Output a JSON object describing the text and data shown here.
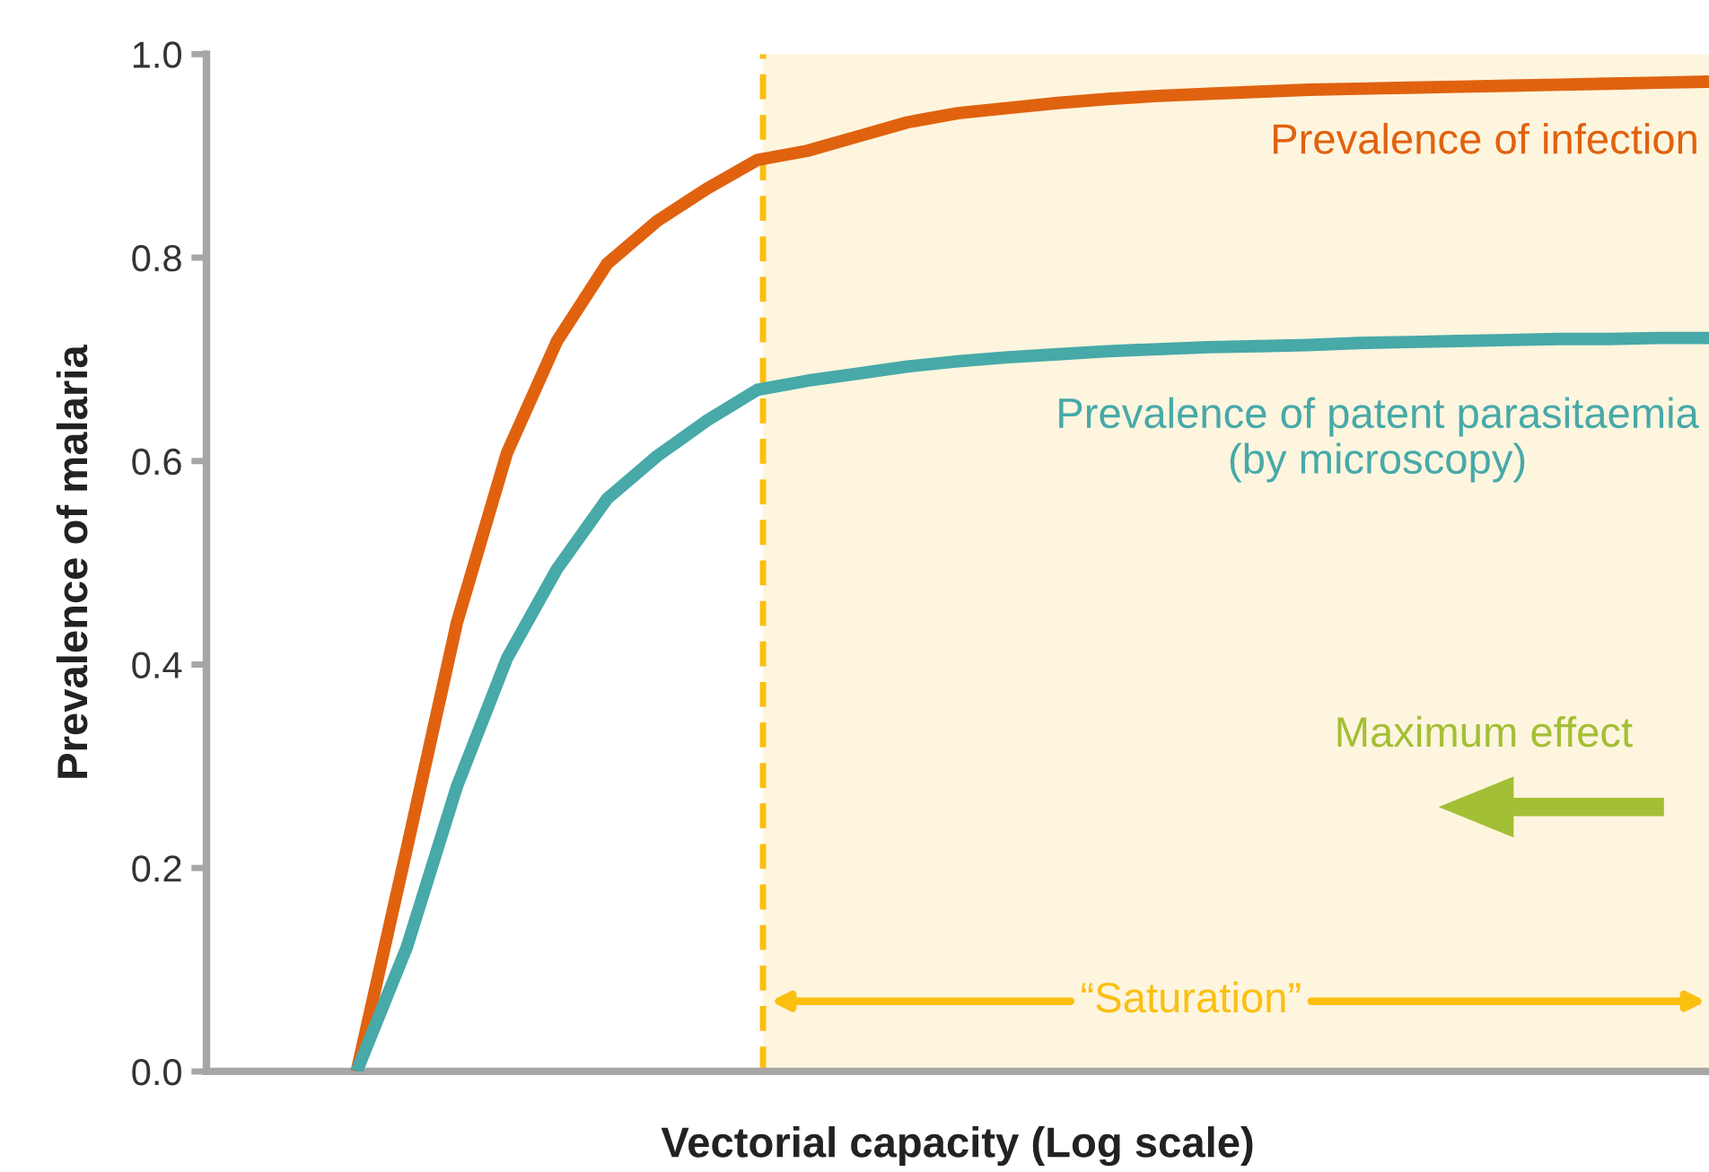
{
  "chart_data": {
    "type": "line",
    "xlabel": "Vectorial capacity (Log scale)",
    "ylabel": "Prevalence of malaria",
    "categories": [
      null,
      null,
      null,
      null,
      null,
      null,
      null,
      null,
      null,
      null,
      null,
      null,
      null,
      null,
      null,
      null,
      null,
      null,
      null,
      null,
      null,
      null,
      null,
      null,
      null,
      null,
      null,
      null,
      null,
      null,
      null
    ],
    "series": [
      {
        "name": "Prevalence of infection",
        "color": "#e0620f",
        "values": [
          null,
          null,
          null,
          0,
          0.219,
          0.441,
          0.608,
          0.718,
          0.794,
          0.836,
          0.868,
          0.896,
          0.905,
          0.919,
          0.933,
          0.942,
          0.947,
          0.952,
          0.956,
          0.959,
          0.961,
          0.963,
          0.965,
          0.966,
          0.967,
          0.968,
          0.969,
          0.97,
          0.971,
          0.972,
          0.973
        ]
      },
      {
        "name": "Prevalence of patent parasitaemia\n(by microscopy)",
        "color": "#47a9a8",
        "values": [
          null,
          null,
          null,
          0,
          0.122,
          0.28,
          0.406,
          0.494,
          0.563,
          0.605,
          0.64,
          0.67,
          0.679,
          0.686,
          0.693,
          0.698,
          0.702,
          0.705,
          0.708,
          0.71,
          0.712,
          0.713,
          0.714,
          0.716,
          0.717,
          0.718,
          0.719,
          0.72,
          0.72,
          0.721,
          0.721
        ]
      }
    ],
    "ylim": [
      0,
      1.0
    ],
    "yticks": [
      {
        "value": 0,
        "label": "0.0"
      },
      {
        "value": 0.2,
        "label": "0.2"
      },
      {
        "value": 0.4,
        "label": "0.4"
      },
      {
        "value": 0.6,
        "label": "0.6"
      },
      {
        "value": 0.8,
        "label": "0.8"
      },
      {
        "value": 1.0,
        "label": "1.0"
      }
    ],
    "tick_labels": "y",
    "line_style": "solid",
    "marker": "none",
    "annotations": [
      "Maximum effect",
      "“Saturation”"
    ]
  }
}
